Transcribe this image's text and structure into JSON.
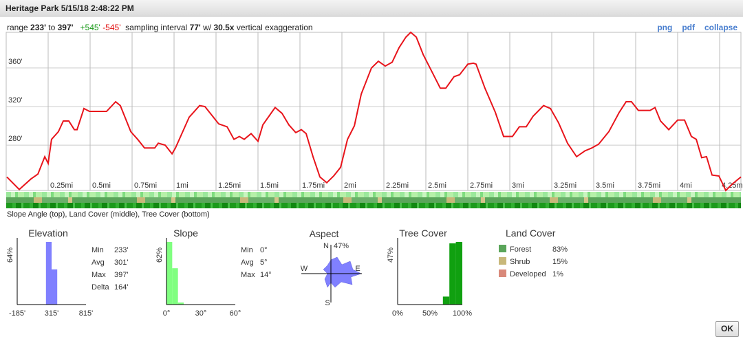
{
  "window": {
    "title": "Heritage Park 5/15/18 2:48:22 PM"
  },
  "summary": {
    "range_label": "range",
    "min": "233'",
    "to": "to",
    "max": "397'",
    "gain": "+545'",
    "loss": "-545'",
    "interval_label": "sampling interval",
    "interval": "77'",
    "with": "w/",
    "exaggeration": "30.5x",
    "exaggeration_label": "vertical exaggeration"
  },
  "links": [
    "png",
    "pdf",
    "collapse"
  ],
  "profile": {
    "type": "line",
    "color": "#e8141b",
    "grid": true,
    "x": [
      0.004,
      0.078,
      0.148,
      0.189,
      0.23,
      0.25,
      0.27,
      0.311,
      0.34,
      0.373,
      0.406,
      0.422,
      0.463,
      0.496,
      0.598,
      0.652,
      0.68,
      0.742,
      0.783,
      0.824,
      0.885,
      0.906,
      0.947,
      0.988,
      1.008,
      1.049,
      1.09,
      1.152,
      1.184,
      1.234,
      1.266,
      1.316,
      1.357,
      1.389,
      1.418,
      1.459,
      1.5,
      1.529,
      1.602,
      1.643,
      1.684,
      1.725,
      1.758,
      1.787,
      1.828,
      1.869,
      1.91,
      1.951,
      1.992,
      2.033,
      2.074,
      2.115,
      2.176,
      2.217,
      2.258,
      2.299,
      2.34,
      2.381,
      2.41,
      2.443,
      2.484,
      2.525,
      2.586,
      2.619,
      2.668,
      2.701,
      2.75,
      2.783,
      2.799,
      2.852,
      2.914,
      2.963,
      3.016,
      3.057,
      3.098,
      3.139,
      3.201,
      3.242,
      3.291,
      3.344,
      3.398,
      3.447,
      3.488,
      3.529,
      3.59,
      3.652,
      3.693,
      3.725,
      3.766,
      3.836,
      3.865,
      3.898,
      3.947,
      4.0,
      4.041,
      4.082,
      4.111,
      4.143,
      4.172,
      4.205,
      4.246,
      4.287,
      4.328,
      4.377
    ],
    "values": [
      247,
      234,
      245,
      250,
      268,
      261,
      286,
      294,
      305,
      305,
      296,
      296,
      318,
      315,
      315,
      325,
      321,
      294,
      286,
      277,
      277,
      282,
      280,
      271,
      277,
      293,
      309,
      321,
      320,
      309,
      302,
      299,
      286,
      289,
      286,
      292,
      284,
      301,
      319,
      313,
      301,
      293,
      296,
      292,
      268,
      247,
      241,
      248,
      257,
      286,
      300,
      333,
      360,
      367,
      362,
      366,
      381,
      392,
      397,
      392,
      374,
      360,
      339,
      339,
      351,
      353,
      364,
      365,
      364,
      339,
      314,
      289,
      289,
      299,
      299,
      310,
      321,
      318,
      303,
      282,
      268,
      274,
      277,
      281,
      294,
      314,
      325,
      325,
      316,
      316,
      319,
      305,
      296,
      306,
      306,
      289,
      286,
      267,
      268,
      249,
      248,
      233,
      240,
      247
    ],
    "xlim": [
      0,
      4.377
    ],
    "ylim": [
      233,
      397
    ],
    "xticks": [
      {
        "value": 0.25,
        "label": "0.25mi"
      },
      {
        "value": 0.5,
        "label": "0.5mi"
      },
      {
        "value": 0.75,
        "label": "0.75mi"
      },
      {
        "value": 1,
        "label": "1mi"
      },
      {
        "value": 1.25,
        "label": "1.25mi"
      },
      {
        "value": 1.5,
        "label": "1.5mi"
      },
      {
        "value": 1.75,
        "label": "1.75mi"
      },
      {
        "value": 2,
        "label": "2mi"
      },
      {
        "value": 2.25,
        "label": "2.25mi"
      },
      {
        "value": 2.5,
        "label": "2.5mi"
      },
      {
        "value": 2.75,
        "label": "2.75mi"
      },
      {
        "value": 3,
        "label": "3mi"
      },
      {
        "value": 3.25,
        "label": "3.25mi"
      },
      {
        "value": 3.5,
        "label": "3.5mi"
      },
      {
        "value": 3.75,
        "label": "3.75mi"
      },
      {
        "value": 4,
        "label": "4mi"
      },
      {
        "value": 4.25,
        "label": "4.25mi"
      }
    ],
    "yticks": [
      {
        "value": 280,
        "label": "280'"
      },
      {
        "value": 320,
        "label": "320'"
      },
      {
        "value": 360,
        "label": "360'"
      }
    ]
  },
  "strips": {
    "caption": "Slope Angle (top), Land Cover (middle), Tree Cover (bottom)"
  },
  "panels": {
    "elevation": {
      "type": "histogram",
      "title": "Elevation",
      "y_label": "64%",
      "color": "#8080ff",
      "bins": [
        233,
        315,
        397
      ],
      "values": [
        64,
        36
      ],
      "xlim": [
        -185,
        815
      ],
      "ylim": [
        0,
        64
      ],
      "xticks": [
        {
          "value": -185,
          "label": "-185'"
        },
        {
          "value": 315,
          "label": "315'"
        },
        {
          "value": 815,
          "label": "815'"
        }
      ],
      "stats": [
        [
          "Min",
          "233'"
        ],
        [
          "Avg",
          "301'"
        ],
        [
          "Max",
          "397'"
        ],
        [
          "Delta",
          "164'"
        ]
      ]
    },
    "slope": {
      "type": "histogram",
      "title": "Slope",
      "y_label": "62%",
      "color": "#80ff80",
      "bins": [
        0,
        5,
        10,
        15
      ],
      "values": [
        62,
        36,
        2
      ],
      "xlim": [
        0,
        60
      ],
      "ylim": [
        0,
        62
      ],
      "xticks": [
        {
          "value": 0,
          "label": "0°"
        },
        {
          "value": 30,
          "label": "30°"
        },
        {
          "value": 60,
          "label": "60°"
        }
      ],
      "stats": [
        [
          "Min",
          "0°"
        ],
        [
          "Avg",
          "5°"
        ],
        [
          "Max",
          "14°"
        ]
      ]
    },
    "aspect": {
      "title": "Aspect",
      "labels": {
        "n": "N",
        "pct": "47%",
        "w": "W",
        "e": "E",
        "s": "S"
      }
    },
    "tree_cover": {
      "type": "histogram",
      "title": "Tree Cover",
      "y_label": "47%",
      "color": "#10a010",
      "bins": [
        70,
        80,
        90,
        100
      ],
      "values": [
        6,
        46,
        47
      ],
      "xlim": [
        0,
        100
      ],
      "ylim": [
        0,
        47
      ],
      "xticks": [
        {
          "value": 0,
          "label": "0%"
        },
        {
          "value": 50,
          "label": "50%"
        },
        {
          "value": 100,
          "label": "100%"
        }
      ]
    },
    "land_cover": {
      "title": "Land Cover",
      "items": [
        {
          "name": "Forest",
          "value": "83%",
          "color": "#5aa55a"
        },
        {
          "name": "Shrub",
          "value": "15%",
          "color": "#c8b87a"
        },
        {
          "name": "Developed",
          "value": "1%",
          "color": "#d9897a"
        }
      ]
    }
  },
  "buttons": {
    "ok": "OK"
  }
}
